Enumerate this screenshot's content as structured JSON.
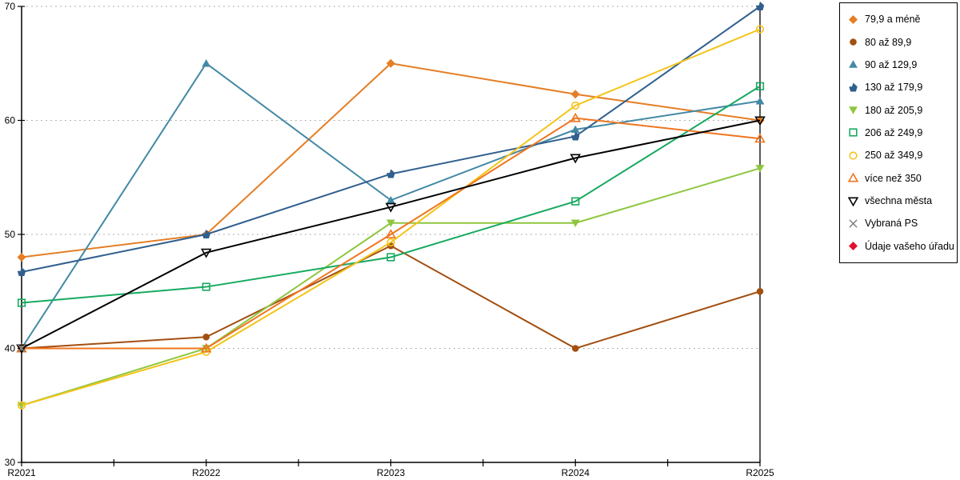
{
  "chart_data": {
    "type": "line",
    "title": "",
    "xlabel": "",
    "ylabel": "",
    "x_categories": [
      "R2021",
      "R2022",
      "R2023",
      "R2024",
      "R2025"
    ],
    "ylim": [
      30,
      70
    ],
    "y_ticks": [
      30,
      40,
      50,
      60,
      70
    ],
    "gridlines_at": [
      40,
      50,
      60,
      70
    ],
    "grid_style": "dotted horizontal gray",
    "gridline_color": "#b3b3b3",
    "axis_color": "#000000",
    "legend_position": "right",
    "series": [
      {
        "name": "79,9 a méně",
        "color": "#E57E25",
        "marker": "diamond",
        "fill": "solid",
        "values": [
          48,
          50,
          65,
          62.3,
          60
        ]
      },
      {
        "name": "80 až 89,9",
        "color": "#A34F11",
        "marker": "circle",
        "fill": "solid",
        "values": [
          40,
          41,
          49,
          40,
          45
        ]
      },
      {
        "name": "90 až 129,9",
        "color": "#4389A5",
        "marker": "triangle-up",
        "fill": "solid",
        "values": [
          40,
          65,
          53,
          59.2,
          61.7
        ]
      },
      {
        "name": "130 až 179,9",
        "color": "#315F8E",
        "marker": "pentagon",
        "fill": "solid",
        "values": [
          46.7,
          50,
          55.3,
          58.6,
          70
        ]
      },
      {
        "name": "180 až 205,9",
        "color": "#8EC63F",
        "marker": "triangle-down",
        "fill": "solid",
        "values": [
          35,
          40,
          51,
          51,
          55.8
        ]
      },
      {
        "name": "206 až 249,9",
        "color": "#17AA60",
        "marker": "square",
        "fill": "outline",
        "values": [
          44,
          45.4,
          48,
          52.9,
          63
        ]
      },
      {
        "name": "250 až 349,9",
        "color": "#F4C319",
        "marker": "circle",
        "fill": "outline",
        "values": [
          35,
          39.7,
          49.3,
          61.3,
          68
        ]
      },
      {
        "name": "více než 350",
        "color": "#F0751E",
        "marker": "triangle-up",
        "fill": "outline",
        "values": [
          40,
          40,
          50,
          60.2,
          58.4
        ]
      },
      {
        "name": "všechna města",
        "color": "#000000",
        "marker": "triangle-down",
        "fill": "outline",
        "values": [
          40,
          48.4,
          52.4,
          56.7,
          60
        ]
      },
      {
        "name": "Vybraná PS",
        "color": "#7F7F7F",
        "marker": "x",
        "fill": "outline",
        "values": [
          40,
          null,
          null,
          null,
          null
        ]
      },
      {
        "name": "Údaje vašeho úřadu",
        "color": "#E4112E",
        "marker": "diamond",
        "fill": "solid",
        "values": [
          null,
          null,
          null,
          null,
          null
        ]
      }
    ]
  }
}
